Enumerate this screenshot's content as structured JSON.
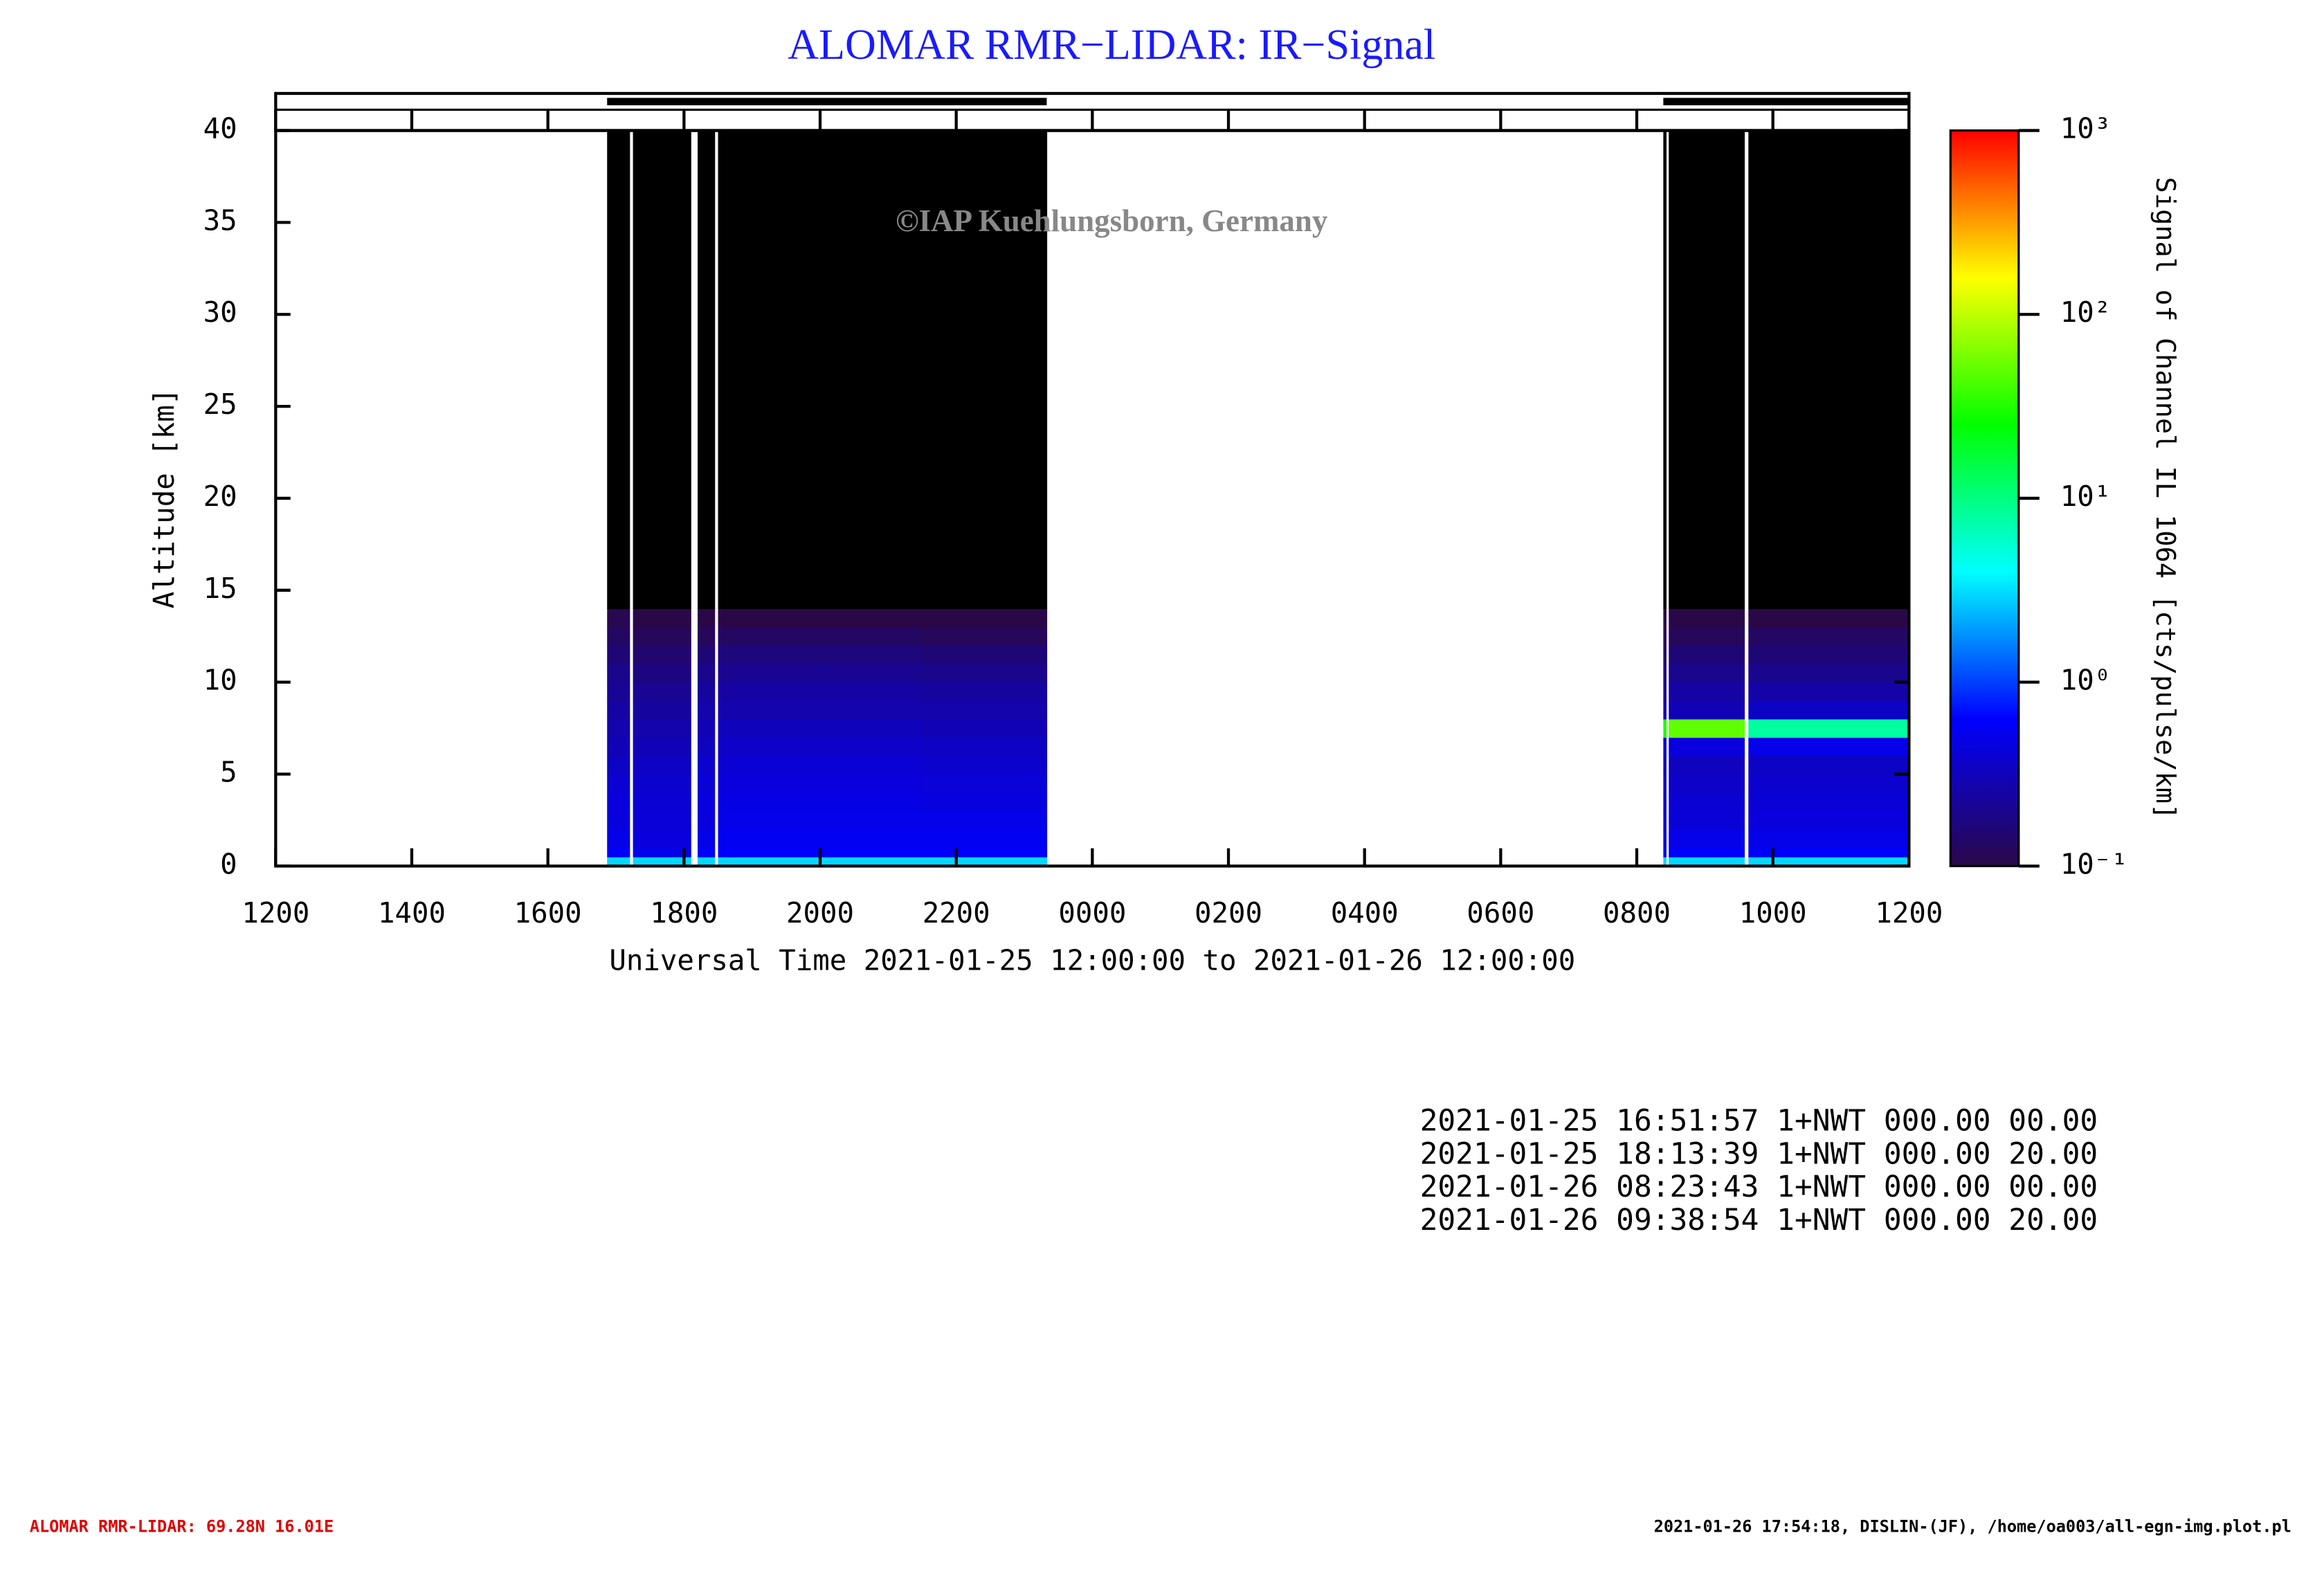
{
  "chart_data": {
    "type": "heatmap",
    "title": "ALOMAR RMR−LIDAR: IR−Signal",
    "watermark": "©IAP Kuehlungsborn, Germany",
    "ylabel": "Altitude [km]",
    "xlabel": "Universal Time 2021-01-25 12:00:00 to 2021-01-26 12:00:00",
    "xlim": [
      12,
      36
    ],
    "xticks": [
      {
        "value": 12,
        "label": "1200"
      },
      {
        "value": 14,
        "label": "1400"
      },
      {
        "value": 16,
        "label": "1600"
      },
      {
        "value": 18,
        "label": "1800"
      },
      {
        "value": 20,
        "label": "2000"
      },
      {
        "value": 22,
        "label": "2200"
      },
      {
        "value": 24,
        "label": "0000"
      },
      {
        "value": 26,
        "label": "0200"
      },
      {
        "value": 28,
        "label": "0400"
      },
      {
        "value": 30,
        "label": "0600"
      },
      {
        "value": 32,
        "label": "0800"
      },
      {
        "value": 34,
        "label": "1000"
      },
      {
        "value": 36,
        "label": "1200"
      }
    ],
    "ylim": [
      0,
      40
    ],
    "yticks": [
      0,
      5,
      10,
      15,
      20,
      25,
      30,
      35,
      40
    ],
    "altitude_bins": [
      0,
      0.5,
      1,
      2,
      3,
      4,
      5,
      6,
      7,
      8,
      9,
      10,
      11,
      12,
      13,
      14,
      40
    ],
    "periods": [
      {
        "time_edges": [
          16.87,
          17.2,
          17.25,
          18.1,
          18.2,
          18.45,
          18.5,
          20.0,
          21.5,
          23.33
        ],
        "profiles": [
          [
            3,
            0.6,
            0.5,
            0.45,
            0.45,
            0.4,
            0.35,
            0.3,
            0.28,
            0.25,
            0.22,
            0.2,
            0.16,
            0.13,
            0.11,
            0.03
          ],
          null,
          [
            3,
            0.5,
            0.45,
            0.42,
            0.4,
            0.38,
            0.34,
            0.3,
            0.27,
            0.24,
            0.21,
            0.18,
            0.15,
            0.12,
            0.1,
            0.03
          ],
          null,
          [
            3,
            0.6,
            0.5,
            0.45,
            0.45,
            0.42,
            0.38,
            0.33,
            0.3,
            0.27,
            0.24,
            0.2,
            0.16,
            0.12,
            0.1,
            0.03
          ],
          null,
          [
            3,
            0.6,
            0.55,
            0.5,
            0.48,
            0.45,
            0.4,
            0.36,
            0.32,
            0.28,
            0.25,
            0.21,
            0.17,
            0.13,
            0.1,
            0.03
          ],
          [
            3,
            0.6,
            0.55,
            0.5,
            0.48,
            0.45,
            0.4,
            0.36,
            0.32,
            0.28,
            0.25,
            0.21,
            0.17,
            0.13,
            0.1,
            0.03
          ],
          [
            3,
            0.6,
            0.55,
            0.5,
            0.46,
            0.43,
            0.38,
            0.34,
            0.3,
            0.27,
            0.24,
            0.2,
            0.16,
            0.12,
            0.1,
            0.03
          ]
        ]
      },
      {
        "time_edges": [
          32.39,
          32.43,
          32.47,
          33.58,
          33.64,
          36.0
        ],
        "profiles": [
          [
            3,
            0.6,
            0.5,
            0.4,
            0.38,
            0.35,
            0.32,
            0.4,
            30,
            0.3,
            0.22,
            0.18,
            0.14,
            0.12,
            0.1,
            0.03
          ],
          null,
          [
            3,
            0.6,
            0.5,
            0.42,
            0.4,
            0.36,
            0.33,
            0.45,
            50,
            0.3,
            0.25,
            0.2,
            0.16,
            0.12,
            0.1,
            0.03
          ],
          null,
          [
            3,
            0.6,
            0.5,
            0.45,
            0.42,
            0.38,
            0.35,
            0.5,
            8,
            0.35,
            0.26,
            0.2,
            0.16,
            0.13,
            0.1,
            0.03
          ]
        ]
      }
    ],
    "color_scale": "log",
    "clim": [
      0.1,
      1000
    ],
    "cticks": [
      {
        "value": 0.1,
        "label": "10⁻¹"
      },
      {
        "value": 1,
        "label": "10⁰"
      },
      {
        "value": 10,
        "label": "10¹"
      },
      {
        "value": 100,
        "label": "10²"
      },
      {
        "value": 1000,
        "label": "10³"
      }
    ],
    "colormap": [
      "#2a0848",
      "#0000ff",
      "#00ffff",
      "#00ff00",
      "#ffff00",
      "#ff0000"
    ],
    "below_color": "#000000",
    "colorbar_label": "Signal of Channel IL 1064 [cts/pulse/km]",
    "info_lines": [
      "2021-01-25 16:51:57 1+NWT 000.00 00.00",
      "2021-01-25 18:13:39 1+NWT 000.00 20.00",
      "2021-01-26 08:23:43 1+NWT 000.00 00.00",
      "2021-01-26 09:38:54 1+NWT 000.00 20.00"
    ],
    "footer_left": "ALOMAR RMR-LIDAR: 69.28N 16.01E",
    "footer_right": "2021-01-26 17:54:18, DISLIN-(JF), /home/oa003/all-egn-img.plot.pl"
  }
}
